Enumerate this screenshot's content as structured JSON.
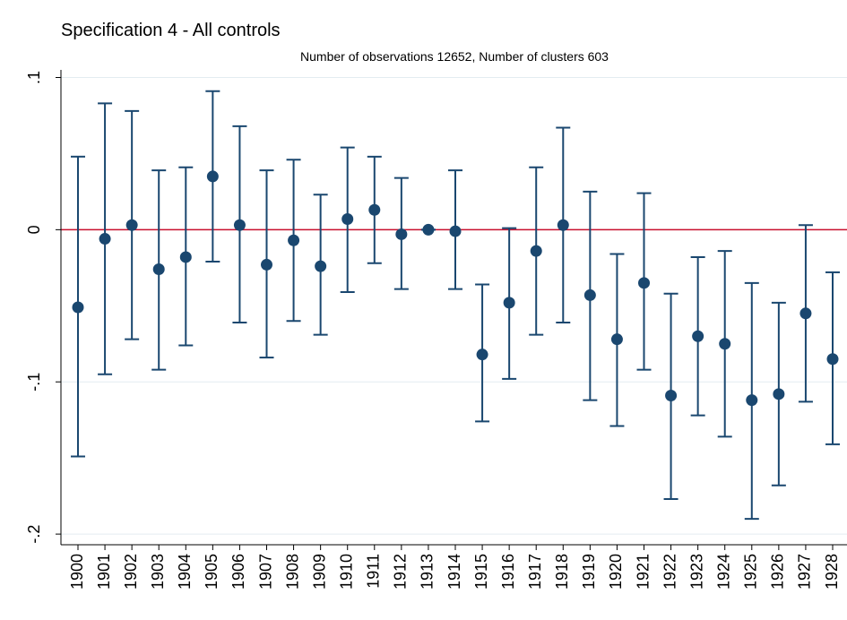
{
  "chart_data": {
    "type": "errorbar",
    "title": "Specification 4 - All controls",
    "subtitle": "Number of observations 12652, Number of clusters 603",
    "categories": [
      "1900",
      "1901",
      "1902",
      "1903",
      "1904",
      "1905",
      "1906",
      "1907",
      "1908",
      "1909",
      "1910",
      "1911",
      "1912",
      "1913",
      "1914",
      "1915",
      "1916",
      "1917",
      "1918",
      "1919",
      "1920",
      "1921",
      "1922",
      "1923",
      "1924",
      "1925",
      "1926",
      "1927",
      "1928"
    ],
    "series": [
      {
        "color": "#1a476f",
        "values": [
          -0.051,
          -0.006,
          0.003,
          -0.026,
          -0.018,
          0.035,
          0.003,
          -0.023,
          -0.007,
          -0.024,
          0.007,
          0.013,
          -0.003,
          0,
          -0.001,
          -0.082,
          -0.048,
          -0.014,
          0.003,
          -0.043,
          -0.072,
          -0.035,
          -0.109,
          -0.07,
          -0.075,
          -0.112,
          -0.108,
          -0.055,
          -0.085
        ],
        "lower": [
          -0.149,
          -0.095,
          -0.072,
          -0.092,
          -0.076,
          -0.021,
          -0.061,
          -0.084,
          -0.06,
          -0.069,
          -0.041,
          -0.022,
          -0.039,
          0,
          -0.039,
          -0.126,
          -0.098,
          -0.069,
          -0.061,
          -0.112,
          -0.129,
          -0.092,
          -0.177,
          -0.122,
          -0.136,
          -0.19,
          -0.168,
          -0.113,
          -0.141
        ],
        "upper": [
          0.048,
          0.083,
          0.078,
          0.039,
          0.041,
          0.091,
          0.068,
          0.039,
          0.046,
          0.023,
          0.054,
          0.048,
          0.034,
          0,
          0.039,
          -0.036,
          0.001,
          0.041,
          0.067,
          0.025,
          -0.016,
          0.024,
          -0.042,
          -0.018,
          -0.014,
          -0.035,
          -0.048,
          0.003,
          -0.028
        ]
      }
    ],
    "ylim": [
      -0.207,
      0.105
    ],
    "yticks": [
      {
        "value": 0.1,
        "label": ".1"
      },
      0,
      {
        "value": -0.1,
        "label": "-.1"
      },
      {
        "value": -0.2,
        "label": "-.2"
      }
    ],
    "grid": true,
    "reference_line": {
      "value": 0,
      "color": "#c8102e"
    }
  }
}
